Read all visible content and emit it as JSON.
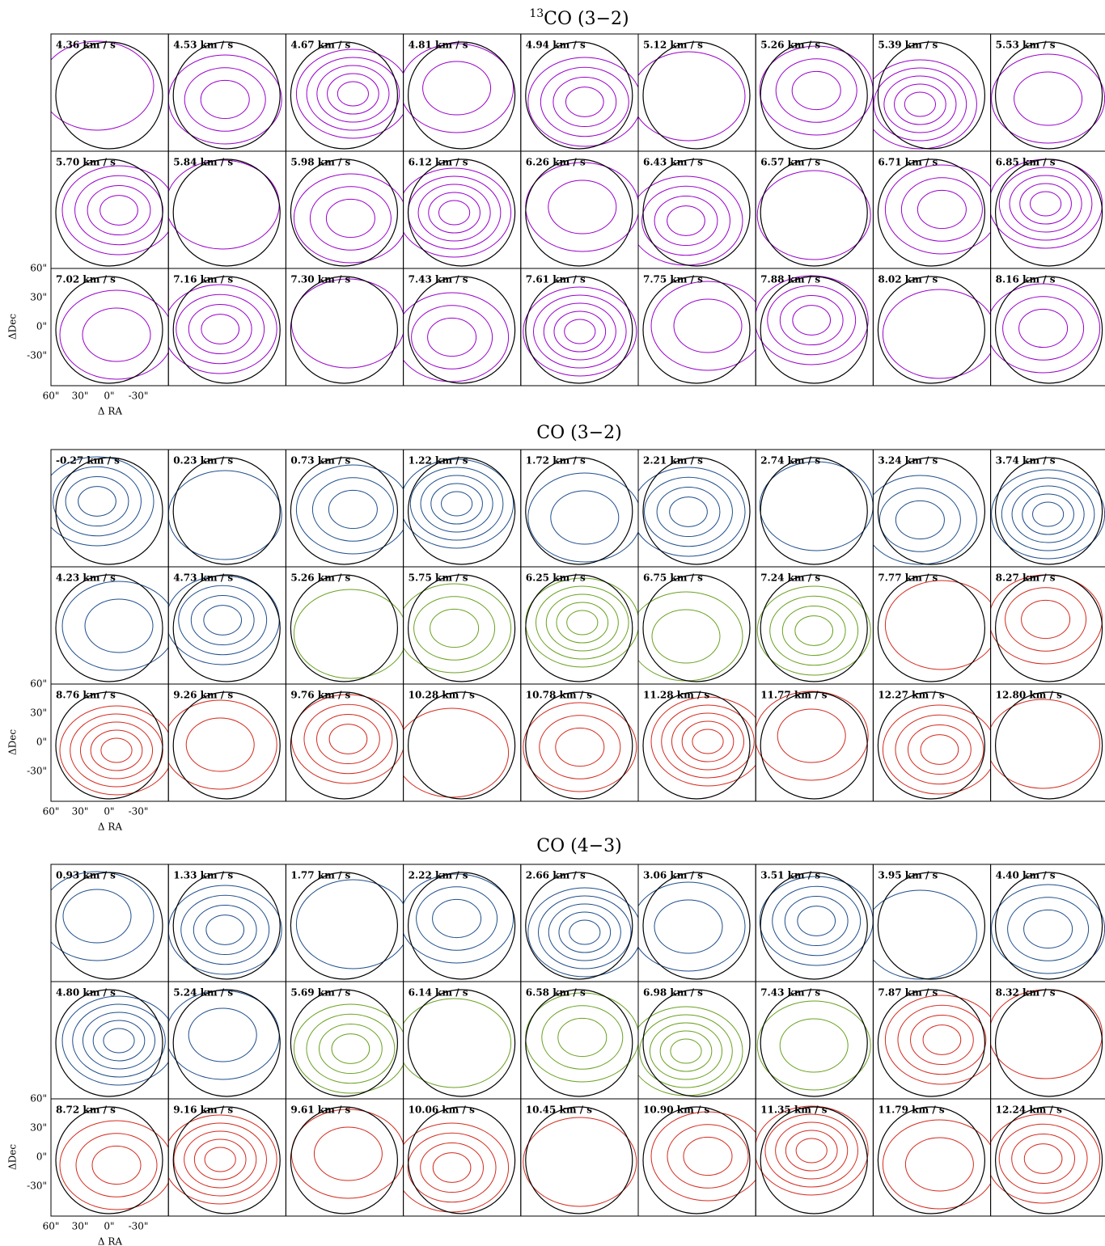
{
  "blocks": [
    {
      "title_sup": "13",
      "title": "CO (3−2)",
      "channels": [
        {
          "label": "4.36 km / s",
          "color": "#9900cc"
        },
        {
          "label": "4.53 km / s",
          "color": "#9900cc"
        },
        {
          "label": "4.67 km / s",
          "color": "#9900cc"
        },
        {
          "label": "4.81 km / s",
          "color": "#9900cc"
        },
        {
          "label": "4.94 km / s",
          "color": "#9900cc"
        },
        {
          "label": "5.12 km / s",
          "color": "#9900cc"
        },
        {
          "label": "5.26 km / s",
          "color": "#9900cc"
        },
        {
          "label": "5.39 km / s",
          "color": "#9900cc"
        },
        {
          "label": "5.53 km / s",
          "color": "#9900cc"
        },
        {
          "label": "5.70 km / s",
          "color": "#9900cc"
        },
        {
          "label": "5.84 km / s",
          "color": "#9900cc"
        },
        {
          "label": "5.98 km / s",
          "color": "#9900cc"
        },
        {
          "label": "6.12 km / s",
          "color": "#9900cc"
        },
        {
          "label": "6.26 km / s",
          "color": "#9900cc"
        },
        {
          "label": "6.43 km / s",
          "color": "#9900cc"
        },
        {
          "label": "6.57 km / s",
          "color": "#9900cc"
        },
        {
          "label": "6.71 km / s",
          "color": "#9900cc"
        },
        {
          "label": "6.85 km / s",
          "color": "#9900cc"
        },
        {
          "label": "7.02 km / s",
          "color": "#9900cc"
        },
        {
          "label": "7.16 km / s",
          "color": "#9900cc"
        },
        {
          "label": "7.30 km / s",
          "color": "#9900cc"
        },
        {
          "label": "7.43 km / s",
          "color": "#9900cc"
        },
        {
          "label": "7.61 km / s",
          "color": "#9900cc"
        },
        {
          "label": "7.75 km / s",
          "color": "#9900cc"
        },
        {
          "label": "7.88 km / s",
          "color": "#9900cc"
        },
        {
          "label": "8.02 km / s",
          "color": "#9900cc"
        },
        {
          "label": "8.16 km / s",
          "color": "#9900cc"
        }
      ]
    },
    {
      "title": "CO (3−2)",
      "channels": [
        {
          "label": "-0.27 km / s",
          "color": "#1f4e8c"
        },
        {
          "label": "0.23 km / s",
          "color": "#1f4e8c"
        },
        {
          "label": "0.73 km / s",
          "color": "#1f4e8c"
        },
        {
          "label": "1.22 km / s",
          "color": "#1f4e8c"
        },
        {
          "label": "1.72 km / s",
          "color": "#1f4e8c"
        },
        {
          "label": "2.21 km / s",
          "color": "#1f4e8c"
        },
        {
          "label": "2.74 km / s",
          "color": "#1f4e8c"
        },
        {
          "label": "3.24 km / s",
          "color": "#1f4e8c"
        },
        {
          "label": "3.74 km / s",
          "color": "#1f4e8c"
        },
        {
          "label": "4.23 km / s",
          "color": "#1f4e8c"
        },
        {
          "label": "4.73 km / s",
          "color": "#1f4e8c"
        },
        {
          "label": "5.26 km / s",
          "color": "#6aa121"
        },
        {
          "label": "5.75 km / s",
          "color": "#6aa121"
        },
        {
          "label": "6.25 km / s",
          "color": "#6aa121"
        },
        {
          "label": "6.75 km / s",
          "color": "#6aa121"
        },
        {
          "label": "7.24 km / s",
          "color": "#6aa121"
        },
        {
          "label": "7.77 km / s",
          "color": "#d42a1e"
        },
        {
          "label": "8.27 km / s",
          "color": "#d42a1e"
        },
        {
          "label": "8.76 km / s",
          "color": "#d42a1e"
        },
        {
          "label": "9.26 km / s",
          "color": "#d42a1e"
        },
        {
          "label": "9.76 km / s",
          "color": "#d42a1e"
        },
        {
          "label": "10.28 km / s",
          "color": "#d42a1e"
        },
        {
          "label": "10.78 km / s",
          "color": "#d42a1e"
        },
        {
          "label": "11.28 km / s",
          "color": "#d42a1e"
        },
        {
          "label": "11.77 km / s",
          "color": "#d42a1e"
        },
        {
          "label": "12.27 km / s",
          "color": "#d42a1e"
        },
        {
          "label": "12.80 km / s",
          "color": "#d42a1e"
        }
      ]
    },
    {
      "title": "CO (4−3)",
      "channels": [
        {
          "label": "0.93 km / s",
          "color": "#1f4e8c"
        },
        {
          "label": "1.33 km / s",
          "color": "#1f4e8c"
        },
        {
          "label": "1.77 km / s",
          "color": "#1f4e8c"
        },
        {
          "label": "2.22 km / s",
          "color": "#1f4e8c"
        },
        {
          "label": "2.66 km / s",
          "color": "#1f4e8c"
        },
        {
          "label": "3.06 km / s",
          "color": "#1f4e8c"
        },
        {
          "label": "3.51 km / s",
          "color": "#1f4e8c"
        },
        {
          "label": "3.95 km / s",
          "color": "#1f4e8c"
        },
        {
          "label": "4.40 km / s",
          "color": "#1f4e8c"
        },
        {
          "label": "4.80 km / s",
          "color": "#1f4e8c"
        },
        {
          "label": "5.24 km / s",
          "color": "#1f4e8c"
        },
        {
          "label": "5.69 km / s",
          "color": "#6aa121"
        },
        {
          "label": "6.14 km / s",
          "color": "#6aa121"
        },
        {
          "label": "6.58 km / s",
          "color": "#6aa121"
        },
        {
          "label": "6.98 km / s",
          "color": "#6aa121"
        },
        {
          "label": "7.43 km / s",
          "color": "#6aa121"
        },
        {
          "label": "7.87 km / s",
          "color": "#d42a1e"
        },
        {
          "label": "8.32 km / s",
          "color": "#d42a1e"
        },
        {
          "label": "8.72 km / s",
          "color": "#d42a1e"
        },
        {
          "label": "9.16 km / s",
          "color": "#d42a1e"
        },
        {
          "label": "9.61 km / s",
          "color": "#d42a1e"
        },
        {
          "label": "10.06 km / s",
          "color": "#d42a1e"
        },
        {
          "label": "10.45 km / s",
          "color": "#d42a1e"
        },
        {
          "label": "10.90 km / s",
          "color": "#d42a1e"
        },
        {
          "label": "11.35 km / s",
          "color": "#d42a1e"
        },
        {
          "label": "11.79 km / s",
          "color": "#d42a1e"
        },
        {
          "label": "12.24 km / s",
          "color": "#d42a1e"
        }
      ]
    }
  ],
  "axes": {
    "x_label": "Δ RA",
    "y_label": "ΔDec",
    "xtick_labels": [
      "60\"",
      "30\"",
      "0\"",
      "-30\""
    ],
    "ytick_labels": [
      "60\"",
      "30\"",
      "0\"",
      "-30\""
    ]
  }
}
